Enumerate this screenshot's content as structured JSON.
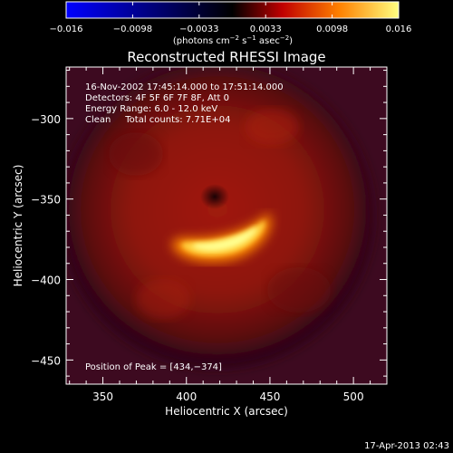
{
  "colorbar": {
    "ticks": [
      "−0.016",
      "−0.0098",
      "−0.0033",
      "0.0033",
      "0.0098",
      "0.016"
    ],
    "range": [
      -0.016,
      0.016
    ],
    "colors": [
      "#0000ff",
      "#000000",
      "#c00000",
      "#ff8000",
      "#ffff80"
    ]
  },
  "units": {
    "base": "(photons cm",
    "exp1": "−2",
    "mid1": " s",
    "exp2": "−1",
    "mid2": " asec",
    "exp3": "−2",
    "end": ")"
  },
  "chart_data": {
    "type": "heatmap",
    "title": "Reconstructed RHESSI Image",
    "xlabel": "Heliocentric X (arcsec)",
    "ylabel": "Heliocentric Y (arcsec)",
    "xlim": [
      328,
      520
    ],
    "ylim": [
      -465,
      -268
    ],
    "x_ticks": [
      350,
      400,
      450,
      500
    ],
    "y_ticks": [
      -300,
      -350,
      -400,
      -450
    ],
    "x_tick_labels": [
      "350",
      "400",
      "450",
      "500"
    ],
    "y_tick_labels": [
      "−300",
      "−350",
      "−400",
      "−450"
    ],
    "peak": [
      434,
      -374
    ],
    "info_lines": [
      "16-Nov-2002 17:45:14.000 to 17:51:14.000",
      "Detectors: 4F 5F 6F 7F 8F, Att 0",
      "Energy Range: 6.0 - 12.0 keV",
      "Clean     Total counts: 7.71E+04"
    ],
    "peak_label": "Position of Peak = [434,−374]"
  },
  "footer": {
    "timestamp": "17-Apr-2013 02:43"
  }
}
